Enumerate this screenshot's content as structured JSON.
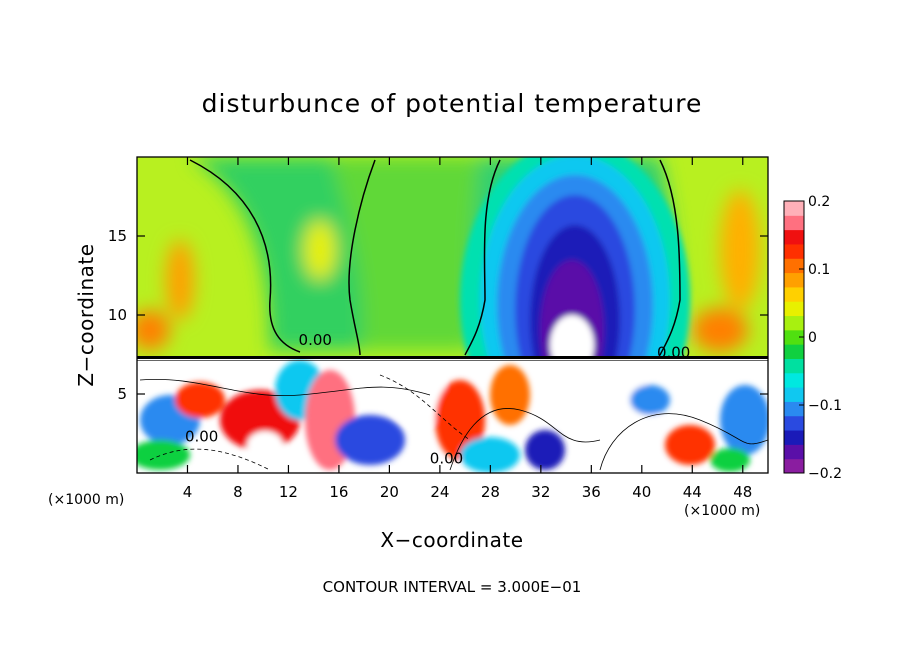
{
  "chart_data": {
    "type": "heatmap",
    "title": "disturbunce of potential temperature",
    "xlabel": "X−coordinate",
    "ylabel": "Z−coordinate",
    "x_unit_left": "(×1000 m)",
    "x_unit_right": "(×1000 m)",
    "xlim": [
      0,
      50
    ],
    "ylim": [
      0,
      20
    ],
    "x_ticks": [
      4,
      8,
      12,
      16,
      20,
      24,
      28,
      32,
      36,
      40,
      44,
      48
    ],
    "y_ticks": [
      5,
      10,
      15
    ],
    "colorbar": {
      "range": [
        -0.2,
        0.2
      ],
      "tick_values": [
        0.2,
        0.1,
        0,
        -0.1,
        -0.2
      ],
      "tick_labels": [
        "0.2",
        "0.1",
        "0",
        "−0.1",
        "−0.2"
      ],
      "colors": [
        "#8a1da0",
        "#5a0fa8",
        "#1a1ab8",
        "#2a4ae0",
        "#2a8af0",
        "#10c8f0",
        "#00e8e0",
        "#00e0a0",
        "#10d040",
        "#50e010",
        "#a8f010",
        "#e8f000",
        "#ffd000",
        "#ffa000",
        "#ff7000",
        "#ff3000",
        "#f01010",
        "#ff7080",
        "#ffb0b8"
      ]
    },
    "contour_labels": [
      {
        "text": "0.00",
        "x": 12.8,
        "z": 8.1
      },
      {
        "text": "0.00",
        "x": 3.8,
        "z": 2.0
      },
      {
        "text": "0.00",
        "x": 23.2,
        "z": 0.6
      },
      {
        "text": "0.00",
        "x": 41.2,
        "z": 7.3
      }
    ],
    "contour_interval_text": "CONTOUR INTERVAL = 3.000E−01"
  }
}
